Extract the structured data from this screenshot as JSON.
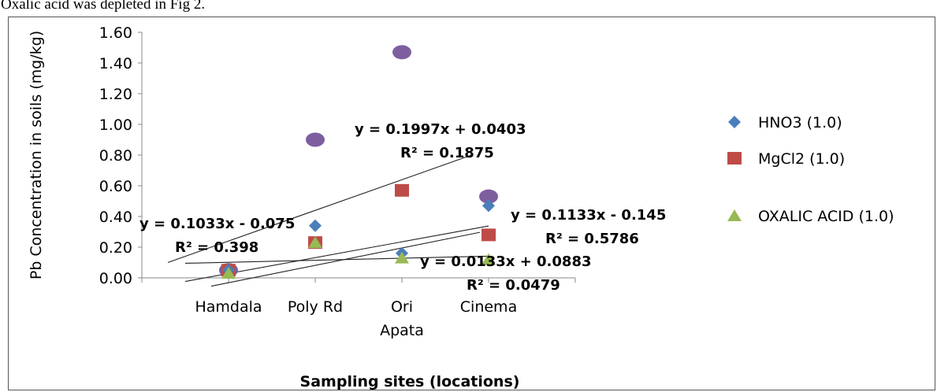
{
  "caption": "Oxalic acid was depleted in Fig 2.",
  "chart_data": {
    "type": "scatter",
    "ylabel": "Pb Concentration in soils (mg/kg)",
    "xlabel": "Sampling sites (locations)",
    "ylim": [
      0,
      1.6
    ],
    "yticks": [
      "0.00",
      "0.20",
      "0.40",
      "0.60",
      "0.80",
      "1.00",
      "1.20",
      "1.40",
      "1.60"
    ],
    "grid": false,
    "legend_position": "right",
    "categories": [
      {
        "lines": [
          "Hamdala"
        ]
      },
      {
        "lines": [
          "Poly Rd"
        ]
      },
      {
        "lines": [
          "Ori",
          "Apata"
        ]
      },
      {
        "lines": [
          "Cinema"
        ]
      }
    ],
    "series": [
      {
        "name": "HNO3 (1.0)",
        "marker": "diamond",
        "color": "#4a7ebb",
        "values": [
          0.05,
          0.34,
          0.16,
          0.47
        ]
      },
      {
        "name": "MgCl2 (1.0)",
        "marker": "square",
        "color": "#be4b48",
        "values": [
          0.05,
          0.23,
          0.57,
          0.28
        ]
      },
      {
        "name": "OXALIC ACID (1.0)",
        "marker": "triangle",
        "color": "#98b954",
        "values": [
          0.03,
          0.23,
          0.13,
          0.12
        ]
      },
      {
        "name": "",
        "marker": "circle",
        "color": "#7d5fa0",
        "values": [
          0.05,
          0.9,
          1.47,
          0.53
        ]
      }
    ],
    "trendlines": [
      {
        "slope": 0.1997,
        "intercept": 0.0403,
        "equation": "y = 0.1997x + 0.0403",
        "r2": "R² = 0.1875"
      },
      {
        "slope": 0.1033,
        "intercept": -0.075,
        "equation": "y = 0.1033x - 0.075",
        "r2": "R² = 0.398"
      },
      {
        "slope": 0.1133,
        "intercept": -0.145,
        "equation": "y = 0.1133x - 0.145",
        "r2": "R² = 0.5786"
      },
      {
        "slope": 0.0133,
        "intercept": 0.0883,
        "equation": "y = 0.0133x + 0.0883",
        "r2": "R² = 0.0479"
      }
    ]
  }
}
